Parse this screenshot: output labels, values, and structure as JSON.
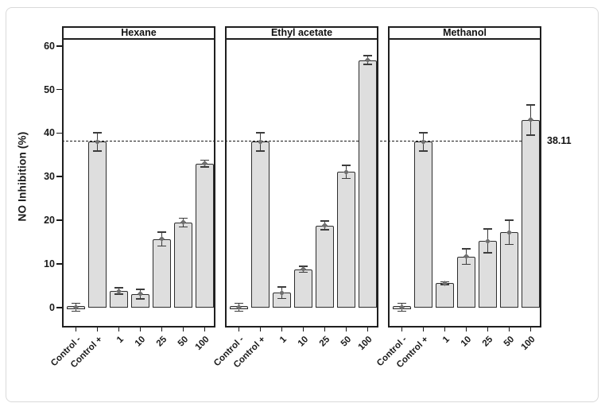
{
  "figure": {
    "background": "#ffffff",
    "frame_color": "#d9d9d9"
  },
  "chart_data": {
    "type": "bar",
    "title": "",
    "xlabel": "",
    "ylabel": "NO Inhibition (%)",
    "grid": "off",
    "legend": "none",
    "categories": [
      "Control -",
      "Control +",
      "1",
      "10",
      "25",
      "50",
      "100"
    ],
    "facets": [
      {
        "name": "Hexane",
        "values": [
          0.1,
          38.0,
          3.8,
          3.1,
          15.7,
          19.5,
          33.0
        ],
        "errors": [
          0.9,
          2.1,
          0.7,
          1.1,
          1.6,
          1.0,
          0.8
        ]
      },
      {
        "name": "Ethyl acetate",
        "values": [
          0.1,
          38.0,
          3.4,
          8.8,
          18.8,
          31.1,
          56.7
        ],
        "errors": [
          0.9,
          2.1,
          1.3,
          0.7,
          1.0,
          1.5,
          1.0
        ]
      },
      {
        "name": "Methanol",
        "values": [
          0.1,
          38.0,
          5.6,
          11.7,
          15.3,
          17.3,
          43.0
        ],
        "errors": [
          0.9,
          2.1,
          0.3,
          1.8,
          2.7,
          2.8,
          3.5
        ]
      }
    ],
    "yticks": [
      0,
      10,
      20,
      30,
      40,
      50,
      60
    ],
    "ylim": [
      -4.2,
      61.4
    ],
    "ref_line": {
      "value": 38.11,
      "label": "38.11",
      "style": "dashed"
    },
    "colors": {
      "bar_fill": "#dedede",
      "bar_border": "#2e2e2e",
      "error": "#3c3c3c",
      "marker": "#6f6f6f",
      "axis": "#1a1a1a"
    }
  }
}
